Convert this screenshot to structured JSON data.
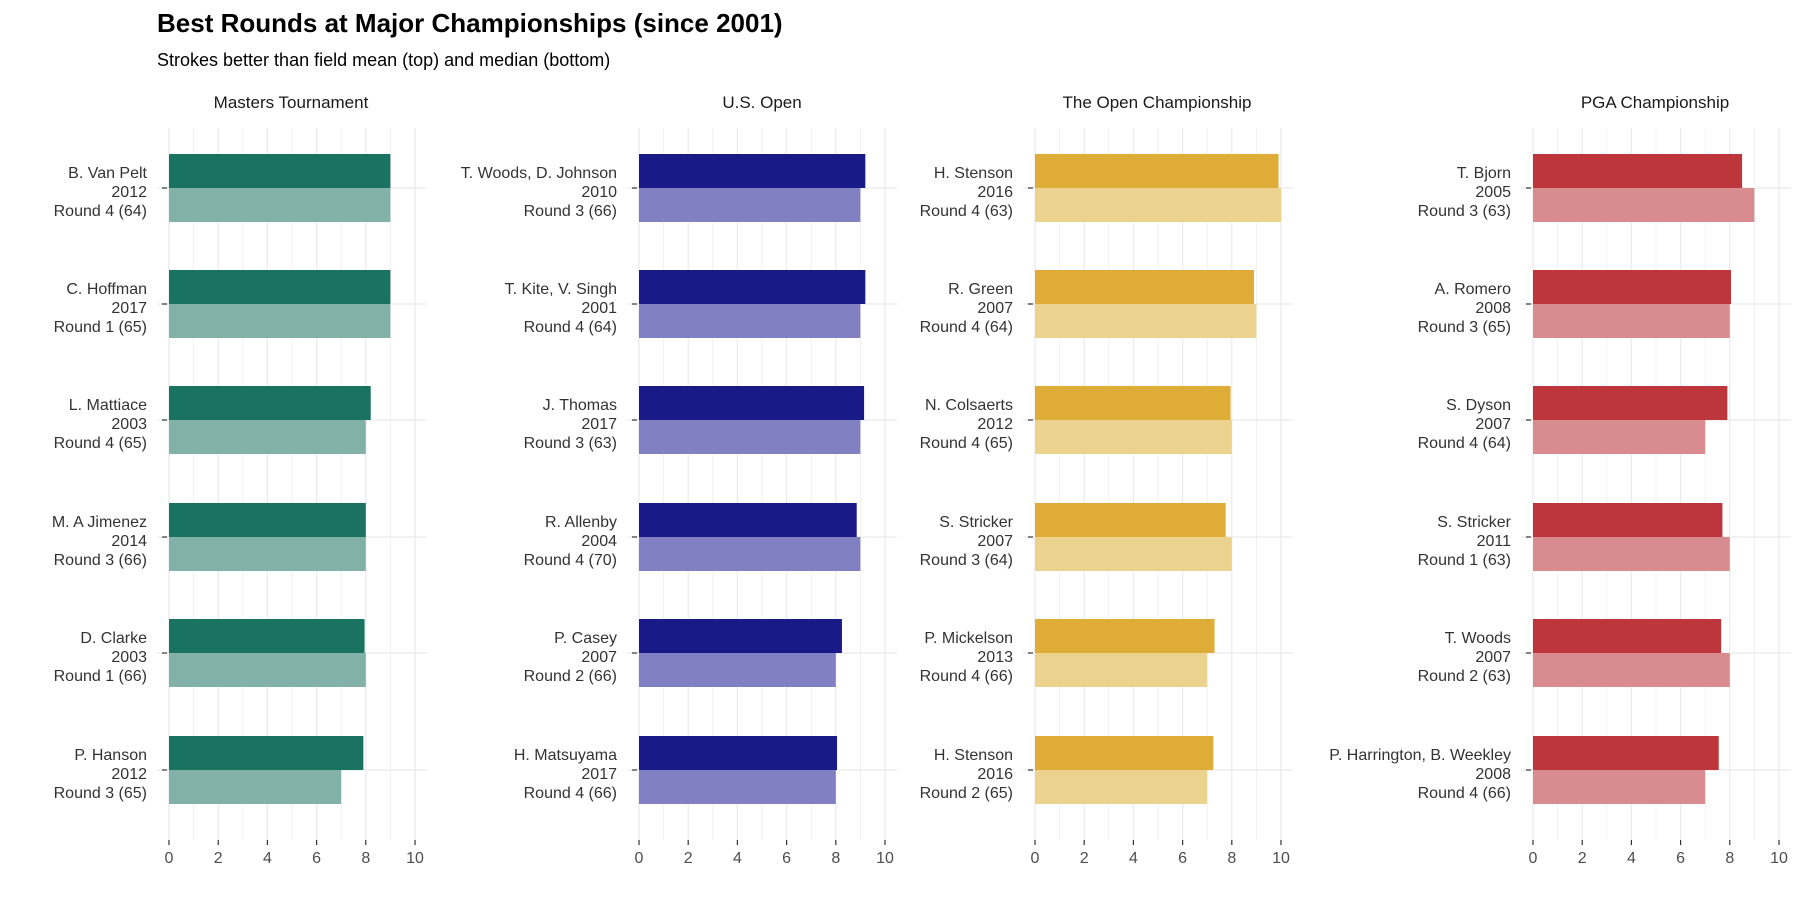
{
  "title": "Best Rounds at Major Championships (since 2001)",
  "subtitle": "Strokes better than field mean (top) and median (bottom)",
  "chart_data": [
    {
      "type": "bar",
      "title": "Masters Tournament",
      "color": "#1a7360",
      "light_color": "#82b1a7",
      "xlim": [
        0,
        10
      ],
      "xticks": [
        0,
        2,
        4,
        6,
        8,
        10
      ],
      "grid": true,
      "rows": [
        {
          "player": "B. Van Pelt",
          "year": "2012",
          "round": "Round 4 (64)",
          "mean": 9.0,
          "median": 9.0
        },
        {
          "player": "C. Hoffman",
          "year": "2017",
          "round": "Round 1 (65)",
          "mean": 9.0,
          "median": 9.0
        },
        {
          "player": "L. Mattiace",
          "year": "2003",
          "round": "Round 4 (65)",
          "mean": 8.2,
          "median": 8.0
        },
        {
          "player": "M. A Jimenez",
          "year": "2014",
          "round": "Round 3 (66)",
          "mean": 8.0,
          "median": 8.0
        },
        {
          "player": "D. Clarke",
          "year": "2003",
          "round": "Round 1 (66)",
          "mean": 7.95,
          "median": 8.0
        },
        {
          "player": "P. Hanson",
          "year": "2012",
          "round": "Round 3 (65)",
          "mean": 7.9,
          "median": 7.0
        }
      ]
    },
    {
      "type": "bar",
      "title": "U.S. Open",
      "color": "#191988",
      "light_color": "#8080c2",
      "xlim": [
        0,
        10
      ],
      "xticks": [
        0,
        2,
        4,
        6,
        8,
        10
      ],
      "grid": true,
      "rows": [
        {
          "player": "T. Woods, D. Johnson",
          "year": "2010",
          "round": "Round 3 (66)",
          "mean": 9.2,
          "median": 9.0
        },
        {
          "player": "T. Kite, V. Singh",
          "year": "2001",
          "round": "Round 4 (64)",
          "mean": 9.2,
          "median": 9.0
        },
        {
          "player": "J. Thomas",
          "year": "2017",
          "round": "Round 3 (63)",
          "mean": 9.15,
          "median": 9.0
        },
        {
          "player": "R. Allenby",
          "year": "2004",
          "round": "Round 4 (70)",
          "mean": 8.85,
          "median": 9.0
        },
        {
          "player": "P. Casey",
          "year": "2007",
          "round": "Round 2 (66)",
          "mean": 8.25,
          "median": 8.0
        },
        {
          "player": "H. Matsuyama",
          "year": "2017",
          "round": "Round 4 (66)",
          "mean": 8.05,
          "median": 8.0
        }
      ]
    },
    {
      "type": "bar",
      "title": "The Open Championship",
      "color": "#e0ac38",
      "light_color": "#ecd28f",
      "xlim": [
        0,
        10
      ],
      "xticks": [
        0,
        2,
        4,
        6,
        8,
        10
      ],
      "grid": true,
      "rows": [
        {
          "player": "H. Stenson",
          "year": "2016",
          "round": "Round 4 (63)",
          "mean": 9.9,
          "median": 10.0
        },
        {
          "player": "R. Green",
          "year": "2007",
          "round": "Round 4 (64)",
          "mean": 8.9,
          "median": 9.0
        },
        {
          "player": "N. Colsaerts",
          "year": "2012",
          "round": "Round 4 (65)",
          "mean": 7.95,
          "median": 8.0
        },
        {
          "player": "S. Stricker",
          "year": "2007",
          "round": "Round 3 (64)",
          "mean": 7.75,
          "median": 8.0
        },
        {
          "player": "P. Mickelson",
          "year": "2013",
          "round": "Round 4 (66)",
          "mean": 7.3,
          "median": 7.0
        },
        {
          "player": "H. Stenson",
          "year": "2016",
          "round": "Round 2 (65)",
          "mean": 7.25,
          "median": 7.0
        }
      ]
    },
    {
      "type": "bar",
      "title": "PGA Championship",
      "color": "#bc363b",
      "light_color": "#d98c8f",
      "xlim": [
        0,
        10
      ],
      "xticks": [
        0,
        2,
        4,
        6,
        8,
        10
      ],
      "grid": true,
      "rows": [
        {
          "player": "T. Bjorn",
          "year": "2005",
          "round": "Round 3 (63)",
          "mean": 8.5,
          "median": 9.0
        },
        {
          "player": "A. Romero",
          "year": "2008",
          "round": "Round 3 (65)",
          "mean": 8.05,
          "median": 8.0
        },
        {
          "player": "S. Dyson",
          "year": "2007",
          "round": "Round 4 (64)",
          "mean": 7.9,
          "median": 7.0
        },
        {
          "player": "S. Stricker",
          "year": "2011",
          "round": "Round 1 (63)",
          "mean": 7.7,
          "median": 8.0
        },
        {
          "player": "T. Woods",
          "year": "2007",
          "round": "Round 2 (63)",
          "mean": 7.65,
          "median": 8.0
        },
        {
          "player": "P. Harrington, B. Weekley",
          "year": "2008",
          "round": "Round 4 (66)",
          "mean": 7.55,
          "median": 7.0
        }
      ]
    }
  ]
}
